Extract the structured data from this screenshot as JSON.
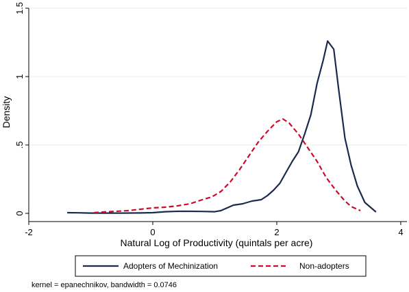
{
  "chart_data": {
    "type": "line",
    "title": "",
    "xlabel": "Natural Log of Productivity (quintals per acre)",
    "ylabel": "Density",
    "xlim": [
      -2,
      4.1
    ],
    "ylim": [
      0,
      1.5
    ],
    "xticks": [
      -2,
      0,
      2,
      4
    ],
    "xtick_labels": [
      "-2",
      "0",
      "2",
      "4"
    ],
    "yticks": [
      0,
      0.5,
      1,
      1.5
    ],
    "ytick_labels": [
      "0",
      ".5",
      "1",
      "1.5"
    ],
    "grid": "horizontal",
    "legend_position": "bottom",
    "note": "kernel = epanechnikov, bandwidth = 0.0746",
    "series": [
      {
        "name": "Adopters of Mechinization",
        "color": "#1a2a4d",
        "style": "solid",
        "x": [
          -1.38,
          -1.2,
          -1.0,
          -0.8,
          -0.5,
          -0.2,
          0.0,
          0.2,
          0.4,
          0.6,
          0.8,
          1.0,
          1.1,
          1.2,
          1.3,
          1.45,
          1.6,
          1.75,
          1.85,
          1.95,
          2.05,
          2.15,
          2.25,
          2.35,
          2.45,
          2.55,
          2.65,
          2.75,
          2.82,
          2.92,
          3.0,
          3.1,
          3.2,
          3.3,
          3.42,
          3.6
        ],
        "y": [
          0.005,
          0.004,
          0.002,
          0.002,
          0.002,
          0.003,
          0.005,
          0.012,
          0.015,
          0.015,
          0.014,
          0.012,
          0.02,
          0.04,
          0.06,
          0.07,
          0.09,
          0.1,
          0.13,
          0.17,
          0.22,
          0.3,
          0.38,
          0.45,
          0.58,
          0.72,
          0.95,
          1.12,
          1.26,
          1.2,
          0.9,
          0.55,
          0.35,
          0.2,
          0.08,
          0.01
        ]
      },
      {
        "name": "Non-adopters",
        "color": "#cc0a2c",
        "style": "dashed",
        "x": [
          -0.95,
          -0.8,
          -0.6,
          -0.4,
          -0.2,
          0.0,
          0.2,
          0.4,
          0.6,
          0.8,
          0.95,
          1.1,
          1.25,
          1.4,
          1.55,
          1.7,
          1.85,
          2.0,
          2.1,
          2.2,
          2.35,
          2.5,
          2.65,
          2.8,
          2.95,
          3.1,
          3.2,
          3.35
        ],
        "y": [
          0.005,
          0.01,
          0.015,
          0.02,
          0.03,
          0.04,
          0.045,
          0.055,
          0.07,
          0.1,
          0.12,
          0.16,
          0.23,
          0.32,
          0.42,
          0.52,
          0.6,
          0.67,
          0.69,
          0.66,
          0.58,
          0.48,
          0.38,
          0.26,
          0.17,
          0.09,
          0.05,
          0.02
        ]
      }
    ]
  }
}
